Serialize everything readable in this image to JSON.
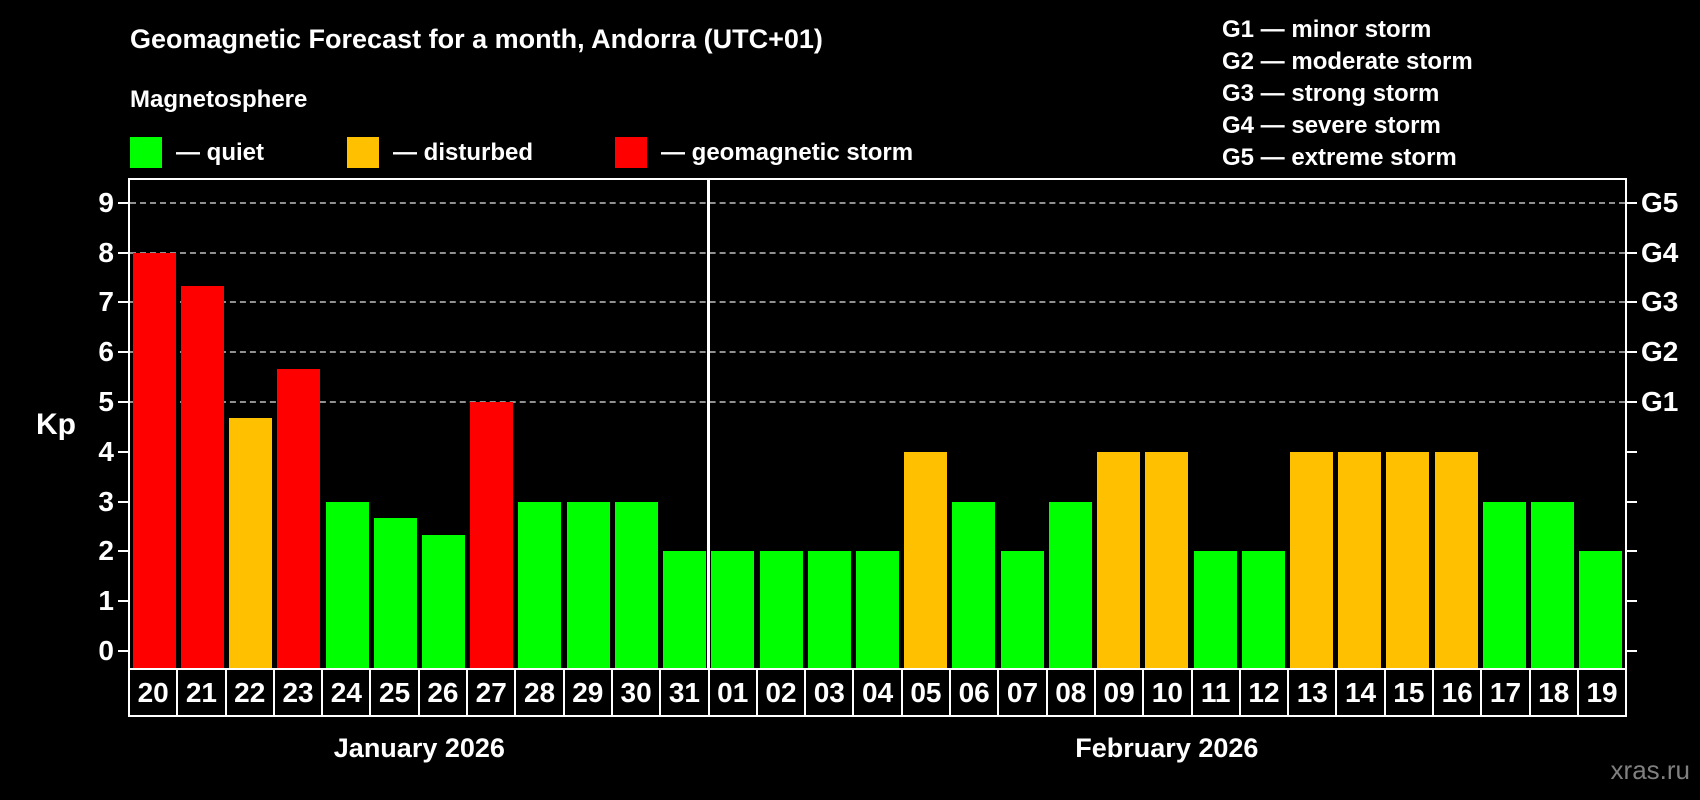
{
  "header": {
    "title": "Geomagnetic Forecast for a month, Andorra (UTC+01)",
    "subtitle": "Magnetosphere"
  },
  "legend": {
    "items": [
      {
        "key": "quiet",
        "label": "— quiet",
        "color": "#00FF00"
      },
      {
        "key": "disturbed",
        "label": "— disturbed",
        "color": "#FFC000"
      },
      {
        "key": "storm",
        "label": "— geomagnetic storm",
        "color": "#FF0000"
      }
    ]
  },
  "g_scale_legend": {
    "lines": [
      "G1 — minor storm",
      "G2 — moderate storm",
      "G3 — strong storm",
      "G4 — severe storm",
      "G5 — extreme storm"
    ]
  },
  "watermark": "xras.ru",
  "chart_data": {
    "type": "bar",
    "title": "Geomagnetic Forecast for a month, Andorra (UTC+01)",
    "ylabel": "Kp",
    "ylim": [
      -0.35,
      9.45
    ],
    "yticks": [
      0,
      1,
      2,
      3,
      4,
      5,
      6,
      7,
      8,
      9
    ],
    "grid_kp": [
      5,
      6,
      7,
      8,
      9
    ],
    "grid_style": "dashed",
    "right_axis_labels": [
      {
        "kp": 5,
        "text": "G1"
      },
      {
        "kp": 6,
        "text": "G2"
      },
      {
        "kp": 7,
        "text": "G3"
      },
      {
        "kp": 8,
        "text": "G4"
      },
      {
        "kp": 9,
        "text": "G5"
      }
    ],
    "months": [
      {
        "label": "January 2026",
        "count": 12
      },
      {
        "label": "February 2026",
        "count": 19
      }
    ],
    "categories": [
      "20",
      "21",
      "22",
      "23",
      "24",
      "25",
      "26",
      "27",
      "28",
      "29",
      "30",
      "31",
      "01",
      "02",
      "03",
      "04",
      "05",
      "06",
      "07",
      "08",
      "09",
      "10",
      "11",
      "12",
      "13",
      "14",
      "15",
      "16",
      "17",
      "18",
      "19"
    ],
    "values": [
      8,
      7.33,
      4.67,
      5.67,
      3,
      2.67,
      2.33,
      5,
      3,
      3,
      3,
      2,
      2,
      2,
      2,
      2,
      4,
      3,
      2,
      3,
      4,
      4,
      2,
      2,
      4,
      4,
      4,
      4,
      3,
      3,
      2
    ],
    "status": [
      "storm",
      "storm",
      "disturbed",
      "storm",
      "quiet",
      "quiet",
      "quiet",
      "storm",
      "quiet",
      "quiet",
      "quiet",
      "quiet",
      "quiet",
      "quiet",
      "quiet",
      "quiet",
      "disturbed",
      "quiet",
      "quiet",
      "quiet",
      "disturbed",
      "disturbed",
      "quiet",
      "quiet",
      "disturbed",
      "disturbed",
      "disturbed",
      "disturbed",
      "quiet",
      "quiet",
      "quiet"
    ],
    "colors": {
      "quiet": "#00FF00",
      "disturbed": "#FFC000",
      "storm": "#FF0000"
    }
  }
}
